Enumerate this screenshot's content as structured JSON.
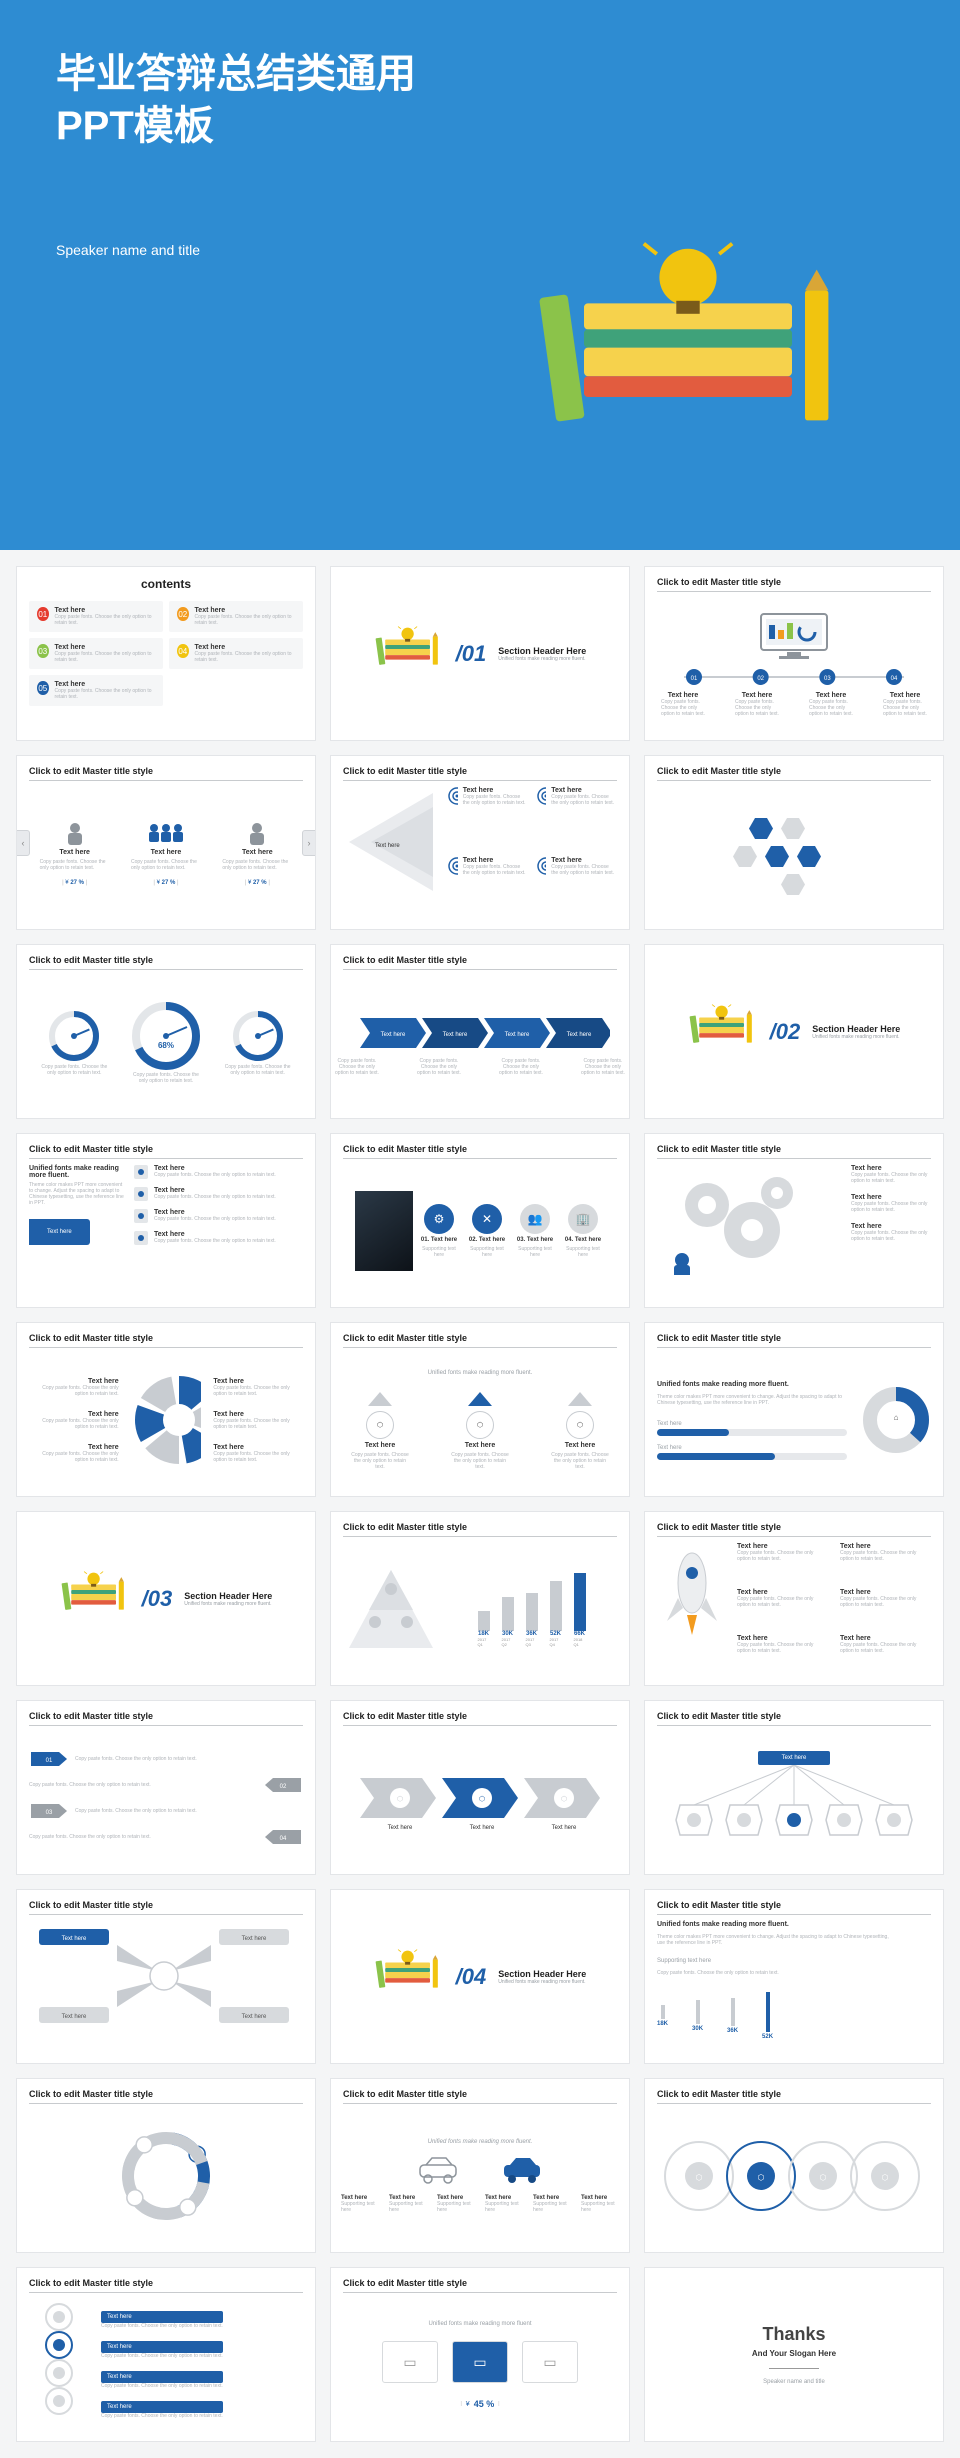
{
  "colors": {
    "cover_bg": "#2e8cd2",
    "primary": "#1f5fa8",
    "primary_dk": "#174a85",
    "accent_red": "#e53b2e",
    "accent_orange": "#f29b1f",
    "accent_yellow": "#f1c40f",
    "accent_green": "#8bc34a",
    "accent_teal": "#15a0a0",
    "gray": "#c8ccd1",
    "gray_dk": "#8d949b",
    "bg_card": "#f5f6f7",
    "text": "#333333",
    "text_muted": "#9aa0a6",
    "border": "#e3e5e8",
    "white": "#ffffff"
  },
  "cover": {
    "title_line1": "毕业答辩总结类通用",
    "title_line2": "PPT模板",
    "speaker": "Speaker name and title",
    "books": {
      "layers": [
        {
          "color": "#e25c3f",
          "h": 16
        },
        {
          "color": "#f6d24c",
          "h": 22
        },
        {
          "color": "#3fa27a",
          "h": 14
        },
        {
          "color": "#f6d24c",
          "h": 20
        }
      ],
      "left_book": "#8bc34a",
      "bulb_body": "#f1c40f",
      "bulb_base": "#7a5b1a",
      "pencil": "#f1c40f"
    }
  },
  "contents": {
    "title": "contents",
    "items": [
      {
        "icon": "01",
        "color": "#e53b2e",
        "label": "Text here",
        "desc": "Copy paste fonts. Choose the only option to retain text."
      },
      {
        "icon": "02",
        "color": "#f29b1f",
        "label": "Text here",
        "desc": "Copy paste fonts. Choose the only option to retain text."
      },
      {
        "icon": "03",
        "color": "#8bc34a",
        "label": "Text here",
        "desc": "Copy paste fonts. Choose the only option to retain text."
      },
      {
        "icon": "04",
        "color": "#f1c40f",
        "label": "Text here",
        "desc": "Copy paste fonts. Choose the only option to retain text."
      },
      {
        "icon": "05",
        "color": "#1f5fa8",
        "label": "Text here",
        "desc": "Copy paste fonts. Choose the only option to retain text."
      }
    ]
  },
  "section": {
    "headers": [
      {
        "num": "/01",
        "title": "Section Header Here",
        "sub": "Unified fonts make reading more fluent."
      },
      {
        "num": "/02",
        "title": "Section Header Here",
        "sub": "Unified fonts make reading more fluent."
      },
      {
        "num": "/03",
        "title": "Section Header Here",
        "sub": "Unified fonts make reading more fluent."
      },
      {
        "num": "/04",
        "title": "Section Header Here",
        "sub": "Unified fonts make reading more fluent."
      }
    ]
  },
  "masterTitle": "Click to edit Master title style",
  "placeholders": {
    "text": "Text here",
    "sup": "Supporting text here",
    "copy": "Copy paste fonts. Choose the only option to retain text.",
    "unified": "Unified fonts make reading more fluent.",
    "unified_sub": "Theme color makes PPT more convenient to change. Adjust the spacing to adapt to Chinese typesetting, use the reference line in PPT."
  },
  "s4": {
    "steps": [
      {
        "n": "01",
        "label": "Text here"
      },
      {
        "n": "02",
        "label": "Text here"
      },
      {
        "n": "03",
        "label": "Text here"
      },
      {
        "n": "04",
        "label": "Text here"
      }
    ]
  },
  "s5": {
    "cols": [
      {
        "icon": "1",
        "label": "Text here",
        "pct": "27 %"
      },
      {
        "icon": "3",
        "label": "Text here",
        "pct": "27 %"
      },
      {
        "icon": "1",
        "label": "Text here",
        "pct": "27 %"
      }
    ],
    "currency": "¥"
  },
  "s6": {
    "rows": 3,
    "cols": 2,
    "label": "Text here"
  },
  "s7": {
    "hexes": [
      "chart",
      "badge",
      "chart2",
      "doc",
      "pie",
      "file"
    ]
  },
  "s8": {
    "gauges": [
      {
        "val": 68,
        "label": "68%"
      },
      {
        "val": 68,
        "label": "68%"
      },
      {
        "val": 68,
        "label": "68%"
      }
    ]
  },
  "s9": {
    "items": [
      "Text here",
      "Text here",
      "Text here",
      "Text here"
    ]
  },
  "s11": {
    "left": "Text here",
    "rows": [
      "Text here",
      "Text here",
      "Text here",
      "Text here"
    ]
  },
  "s12": {
    "labels": [
      "01. Text here",
      "02. Text here",
      "03. Text here",
      "04. Text here"
    ]
  },
  "s13": {
    "rows": [
      "Text here",
      "Text here",
      "Text here"
    ]
  },
  "s14": {
    "arcs": 6,
    "labels": [
      "Text here",
      "Text here",
      "Text here",
      "Text here",
      "Text here",
      "Text here"
    ]
  },
  "s15": {
    "items": [
      "Text here",
      "Text here",
      "Text here"
    ]
  },
  "s16": {
    "bars": [
      {
        "pct": 38
      },
      {
        "pct": 62
      }
    ],
    "label": "Text here"
  },
  "s18": {
    "bars": [
      {
        "k": "18K",
        "q": "2017 Q1"
      },
      {
        "k": "30K",
        "q": "2017 Q2"
      },
      {
        "k": "36K",
        "q": "2017 Q3"
      },
      {
        "k": "52K",
        "q": "2017 Q4"
      },
      {
        "k": "66K",
        "q": "2018 Q1"
      }
    ]
  },
  "s19": {
    "rows": [
      "Text here",
      "Text here",
      "Text here",
      "Text here",
      "Text here",
      "Text here"
    ]
  },
  "s20": {
    "rows": [
      {
        "n": "01",
        "t": "Text here"
      },
      {
        "n": "02",
        "t": "Text here"
      },
      {
        "n": "03",
        "t": "Text here"
      },
      {
        "n": "04",
        "t": "Text here"
      }
    ]
  },
  "s21": {
    "steps": [
      "Text here",
      "Text here",
      "Text here"
    ]
  },
  "s22": {
    "hub": "Text here",
    "spokes": 5
  },
  "s23": {
    "top": [
      "Text here",
      "Text here"
    ],
    "bottom": [
      "Text here",
      "Text here"
    ]
  },
  "s25": {
    "bars": [
      {
        "k": "18K"
      },
      {
        "k": "30K"
      },
      {
        "k": "36K"
      },
      {
        "k": "52K"
      }
    ]
  },
  "s27": {
    "cars": [
      "car",
      "car"
    ],
    "items": [
      "Text here",
      "Text here",
      "Text here",
      "Text here",
      "Text here",
      "Text here"
    ]
  },
  "s28": {
    "circles": 4
  },
  "s29": {
    "items": [
      "Text here",
      "Text here",
      "Text here",
      "Text here"
    ]
  },
  "s30": {
    "cards": 3,
    "pct": "45 %",
    "currency": "¥",
    "unified": "Unified fonts make reading more fluent"
  },
  "thanks": {
    "title": "Thanks",
    "sub": "And Your Slogan Here",
    "foot": "Speaker name and title"
  }
}
